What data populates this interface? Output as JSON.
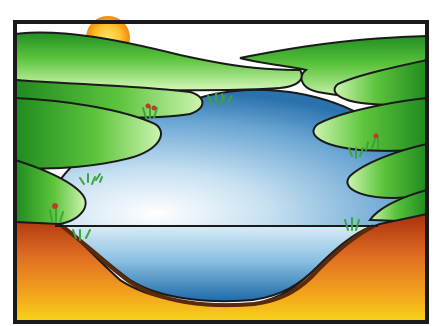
{
  "scene": {
    "elements": [
      "sun",
      "rolling-green-hills",
      "lake",
      "water-surface-line",
      "riverbed-soil",
      "aquatic-plants"
    ]
  },
  "colors": {
    "outline": "#1a1a1a",
    "sky": "#ffffff",
    "sun_center": "#ffd23a",
    "sun_edge": "#f08a0a",
    "hill_light": "#c8f2a8",
    "hill_mid": "#5cc43c",
    "hill_dark": "#1f8a1f",
    "water_light": "#eef6fb",
    "water_mid": "#7fb6dc",
    "water_dark": "#1f6fae",
    "soil_top": "#b03a12",
    "soil_mid": "#e0782a",
    "soil_bottom": "#f2c81a",
    "plant": "#3aa53a",
    "plant_flower": "#c0392b"
  }
}
